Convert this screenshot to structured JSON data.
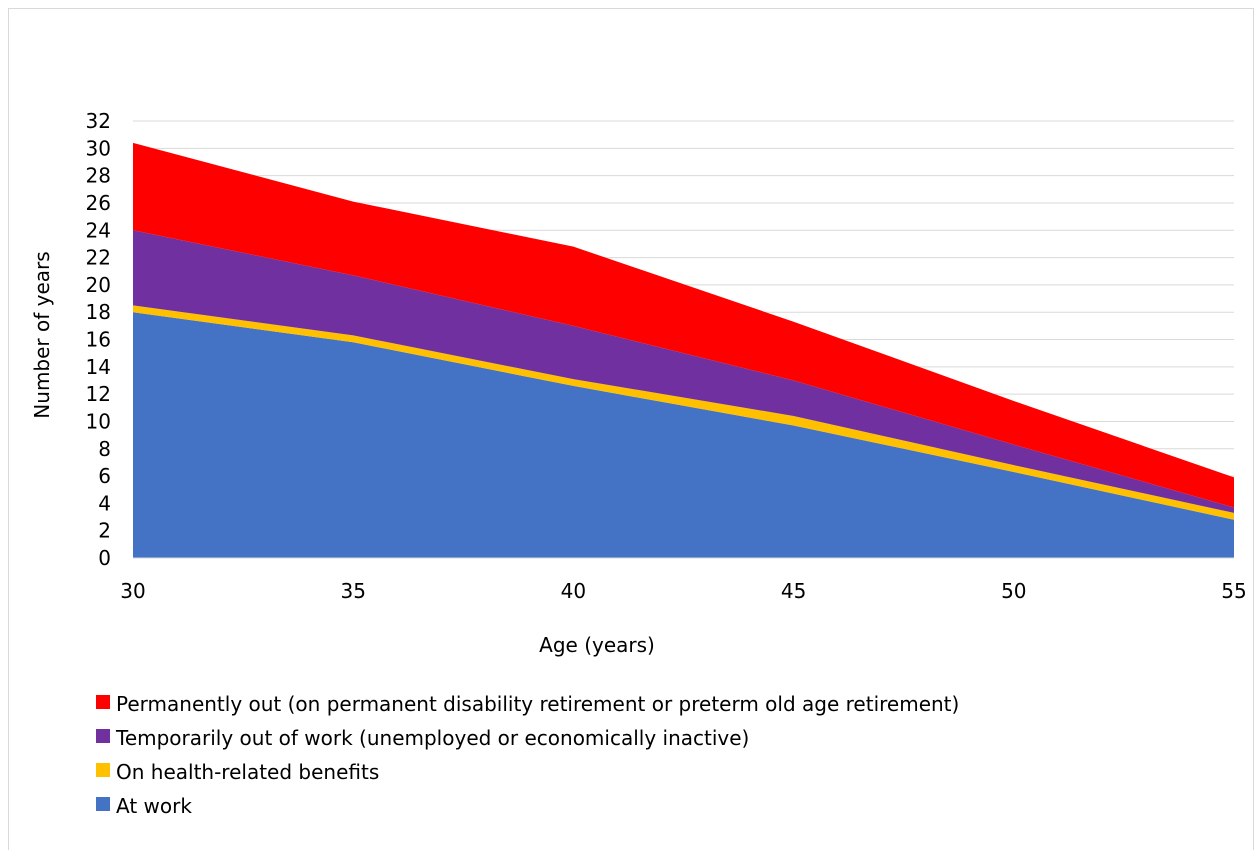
{
  "chart_data": {
    "type": "area",
    "stacked": true,
    "x": [
      30,
      35,
      40,
      45,
      50,
      55
    ],
    "xlabel": "Age (years)",
    "ylabel": "Number of years",
    "xlim": [
      30,
      55
    ],
    "ylim": [
      0,
      32
    ],
    "y_ticks": [
      0,
      2,
      4,
      6,
      8,
      10,
      12,
      14,
      16,
      18,
      20,
      22,
      24,
      26,
      28,
      30,
      32
    ],
    "x_ticks": [
      30,
      35,
      40,
      45,
      50,
      55
    ],
    "grid": "horizontal",
    "legend_position": "bottom",
    "series": [
      {
        "name": "At work",
        "color": "#4472C4",
        "values": [
          18.0,
          15.8,
          12.6,
          9.7,
          6.3,
          2.8
        ]
      },
      {
        "name": "On health-related benefits",
        "color": "#FFC000",
        "values": [
          0.5,
          0.5,
          0.5,
          0.7,
          0.5,
          0.5
        ]
      },
      {
        "name": "Temporarily out of work (unemployed or economically inactive)",
        "color": "#7030A0",
        "values": [
          5.5,
          4.4,
          3.9,
          2.6,
          1.5,
          0.4
        ]
      },
      {
        "name": "Permanently out (on permanent disability retirement or preterm old age retirement)",
        "color": "#FF0000",
        "values": [
          6.4,
          5.4,
          5.8,
          4.3,
          3.2,
          2.2
        ]
      }
    ]
  }
}
